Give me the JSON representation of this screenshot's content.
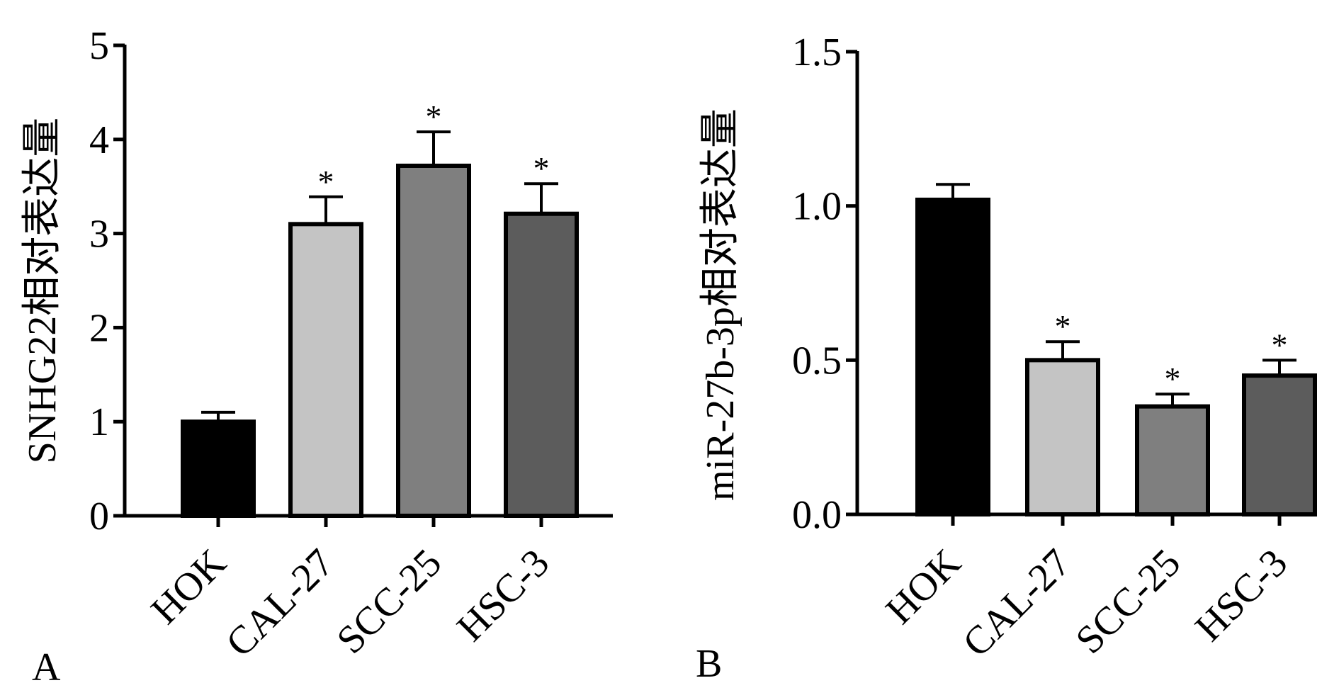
{
  "chart_data": [
    {
      "type": "bar",
      "panel_label": "A",
      "ylabel": "SNHG22相对表达量",
      "xlabel": "",
      "categories": [
        "HOK",
        "CAL-27",
        "SCC-25",
        "HSC-3"
      ],
      "values": [
        1.0,
        3.1,
        3.72,
        3.21
      ],
      "errors": [
        0.1,
        0.29,
        0.36,
        0.32
      ],
      "significance": [
        "",
        "*",
        "*",
        "*"
      ],
      "ylim": [
        0,
        5
      ],
      "yticks": [
        "0",
        "1",
        "2",
        "3",
        "4",
        "5"
      ],
      "ytick_values": [
        0,
        1,
        2,
        3,
        4,
        5
      ],
      "bar_colors": [
        "#000000",
        "#c4c4c4",
        "#7f7f7f",
        "#5c5c5c"
      ],
      "grid": false
    },
    {
      "type": "bar",
      "panel_label": "B",
      "ylabel": "miR-27b-3p相对表达量",
      "xlabel": "",
      "categories": [
        "HOK",
        "CAL-27",
        "SCC-25",
        "HSC-3"
      ],
      "values": [
        1.02,
        0.5,
        0.35,
        0.45
      ],
      "errors": [
        0.05,
        0.06,
        0.04,
        0.05
      ],
      "significance": [
        "",
        "*",
        "*",
        "*"
      ],
      "ylim": [
        0,
        1.5
      ],
      "yticks": [
        "0.0",
        "0.5",
        "1.0",
        "1.5"
      ],
      "ytick_values": [
        0,
        0.5,
        1.0,
        1.5
      ],
      "bar_colors": [
        "#000000",
        "#c4c4c4",
        "#7f7f7f",
        "#5c5c5c"
      ],
      "grid": false
    }
  ]
}
